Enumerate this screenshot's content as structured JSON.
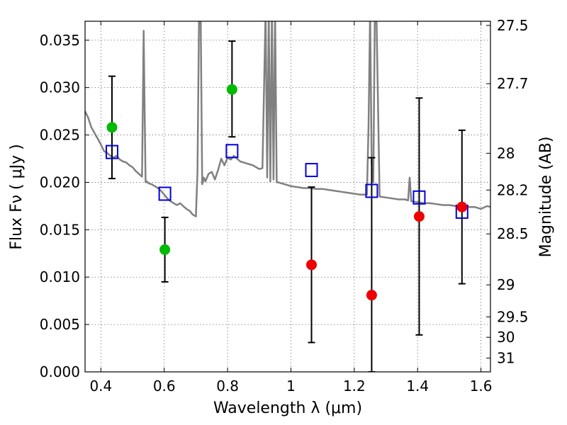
{
  "chart_data": {
    "type": "scatter",
    "xlabel": "Wavelength  λ (μm)",
    "ylabel": "Flux  Fν  ( μJy )",
    "ylabel_right": "Magnitude (AB)",
    "xlim": [
      0.35,
      1.63
    ],
    "ylim": [
      0.0,
      0.037
    ],
    "grid": true,
    "x_ticks": [
      0.4,
      0.6,
      0.8,
      1.0,
      1.2,
      1.4,
      1.6
    ],
    "x_tick_labels": [
      "0.4",
      "0.6",
      "0.8",
      "1",
      "1.2",
      "1.4",
      "1.6"
    ],
    "y_ticks": [
      0.0,
      0.005,
      0.01,
      0.015,
      0.02,
      0.025,
      0.03,
      0.035
    ],
    "y_tick_labels": [
      "0.000",
      "0.005",
      "0.010",
      "0.015",
      "0.020",
      "0.025",
      "0.030",
      "0.035"
    ],
    "right_ticks": [
      {
        "label": "27.5",
        "flux": 0.03656
      },
      {
        "label": "27.7",
        "flux": 0.03041
      },
      {
        "label": "28",
        "flux": 0.02307
      },
      {
        "label": "28.2",
        "flux": 0.01919
      },
      {
        "label": "28.5",
        "flux": 0.01456
      },
      {
        "label": "29",
        "flux": 0.00918
      },
      {
        "label": "29.5",
        "flux": 0.0058
      },
      {
        "label": "30",
        "flux": 0.00365
      },
      {
        "label": "31",
        "flux": 0.00145
      }
    ],
    "colors": {
      "spectrum": "#808080",
      "detection": "#00bb00",
      "non_detection": "#ee0000",
      "model": "#0000dd",
      "errorbar": "#000000"
    },
    "series": [
      {
        "kind": "spectrum",
        "x": [
          0.35,
          0.36,
          0.37,
          0.38,
          0.39,
          0.4,
          0.41,
          0.42,
          0.43,
          0.44,
          0.45,
          0.46,
          0.47,
          0.48,
          0.49,
          0.5,
          0.51,
          0.52,
          0.53,
          0.535,
          0.538,
          0.541,
          0.545,
          0.55,
          0.56,
          0.57,
          0.58,
          0.59,
          0.6,
          0.61,
          0.62,
          0.63,
          0.64,
          0.65,
          0.66,
          0.67,
          0.68,
          0.69,
          0.7,
          0.705,
          0.71,
          0.715,
          0.72,
          0.725,
          0.73,
          0.74,
          0.75,
          0.76,
          0.77,
          0.78,
          0.79,
          0.8,
          0.81,
          0.82,
          0.83,
          0.84,
          0.85,
          0.86,
          0.87,
          0.88,
          0.89,
          0.9,
          0.91,
          0.92,
          0.925,
          0.93,
          0.935,
          0.94,
          0.945,
          0.95,
          0.955,
          0.96,
          0.97,
          0.98,
          0.99,
          1.0,
          1.02,
          1.04,
          1.06,
          1.08,
          1.1,
          1.12,
          1.14,
          1.16,
          1.18,
          1.2,
          1.22,
          1.24,
          1.245,
          1.25,
          1.255,
          1.26,
          1.265,
          1.27,
          1.28,
          1.3,
          1.32,
          1.34,
          1.36,
          1.37,
          1.375,
          1.38,
          1.4,
          1.42,
          1.44,
          1.46,
          1.48,
          1.5,
          1.52,
          1.54,
          1.56,
          1.58,
          1.6,
          1.62,
          1.63
        ],
        "y": [
          0.0275,
          0.0268,
          0.0258,
          0.0252,
          0.0246,
          0.024,
          0.0233,
          0.0231,
          0.0228,
          0.0226,
          0.0228,
          0.0224,
          0.0222,
          0.0221,
          0.0218,
          0.0216,
          0.0212,
          0.0209,
          0.0206,
          0.036,
          0.028,
          0.02,
          0.0201,
          0.0199,
          0.0198,
          0.0196,
          0.0194,
          0.0191,
          0.0187,
          0.0183,
          0.018,
          0.0178,
          0.0176,
          0.0178,
          0.0175,
          0.0172,
          0.017,
          0.0166,
          0.0164,
          0.021,
          0.038,
          0.038,
          0.0198,
          0.0205,
          0.0201,
          0.0209,
          0.0211,
          0.0203,
          0.0213,
          0.0225,
          0.0218,
          0.0226,
          0.0224,
          0.0228,
          0.0225,
          0.0222,
          0.0221,
          0.022,
          0.0219,
          0.0218,
          0.0216,
          0.0214,
          0.0215,
          0.038,
          0.0205,
          0.038,
          0.0201,
          0.038,
          0.0203,
          0.038,
          0.02,
          0.02,
          0.0199,
          0.0198,
          0.0197,
          0.0196,
          0.0195,
          0.0194,
          0.0194,
          0.0193,
          0.0193,
          0.0192,
          0.0191,
          0.019,
          0.0189,
          0.0188,
          0.0187,
          0.0187,
          0.026,
          0.038,
          0.022,
          0.02,
          0.038,
          0.038,
          0.0185,
          0.0184,
          0.0183,
          0.0182,
          0.0182,
          0.0181,
          0.0205,
          0.018,
          0.0179,
          0.0178,
          0.0178,
          0.0177,
          0.0176,
          0.0176,
          0.0175,
          0.0175,
          0.0174,
          0.0174,
          0.0172,
          0.0175,
          0.0174
        ]
      },
      {
        "kind": "model",
        "name": "",
        "x": [
          0.435,
          0.602,
          0.814,
          1.065,
          1.255,
          1.405,
          1.54
        ],
        "y": [
          0.0232,
          0.0188,
          0.0233,
          0.0213,
          0.0191,
          0.0184,
          0.0169
        ]
      },
      {
        "kind": "detection",
        "name": "",
        "x": [
          0.435,
          0.602,
          0.814
        ],
        "y": [
          0.0258,
          0.0129,
          0.0298
        ],
        "err_low": [
          0.0204,
          0.0095,
          0.0248
        ],
        "err_high": [
          0.0312,
          0.0163,
          0.0349
        ]
      },
      {
        "kind": "non_detection",
        "name": "",
        "x": [
          1.065,
          1.255,
          1.405,
          1.54
        ],
        "y": [
          0.0113,
          0.0081,
          0.0164,
          0.0174
        ],
        "err_low": [
          0.0031,
          0.0,
          0.0039,
          0.0093
        ],
        "err_high": [
          0.0195,
          0.0226,
          0.0289,
          0.0255
        ]
      }
    ]
  }
}
